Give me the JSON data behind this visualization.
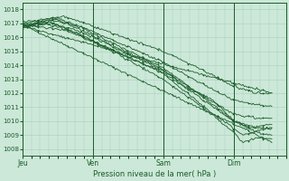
{
  "xlabel": "Pression niveau de la mer( hPa )",
  "xlabels": [
    "Jeu",
    "Ven",
    "Sam",
    "Dim"
  ],
  "xticks": [
    0,
    24,
    48,
    72
  ],
  "ylim": [
    1007.5,
    1018.5
  ],
  "yticks": [
    1008,
    1009,
    1010,
    1011,
    1012,
    1013,
    1014,
    1015,
    1016,
    1017,
    1018
  ],
  "background_color": "#cce8d8",
  "grid_color": "#aacfbc",
  "line_color": "#1a5c2a",
  "xlim": [
    0,
    90
  ],
  "total_hours": 90,
  "figsize": [
    3.2,
    2.0
  ],
  "dpi": 100
}
